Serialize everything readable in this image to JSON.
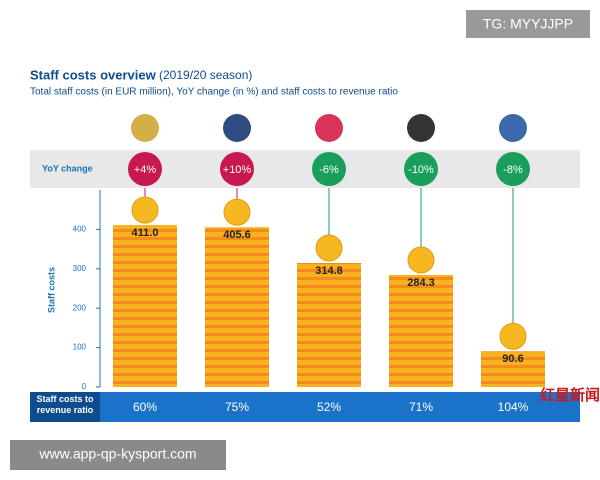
{
  "chart_data": {
    "type": "bar",
    "title": "Staff costs overview",
    "title_note": "(2019/20 season)",
    "subtitle": "Total staff costs (in EUR million), YoY change (in %) and staff costs to revenue ratio",
    "y_label": "Staff costs",
    "categories": [
      null,
      null,
      null,
      null,
      null
    ],
    "values": [
      411.0,
      405.6,
      314.8,
      284.3,
      90.6
    ],
    "value_labels": [
      "411.0",
      "405.6",
      "314.8",
      "284.3",
      "90.6"
    ],
    "color": "#f7b21e",
    "ylim": [
      0,
      500
    ],
    "yticks": [
      0,
      100,
      200,
      300,
      400
    ],
    "yoy": {
      "label": "YoY change",
      "values": [
        4,
        10,
        -6,
        -10,
        -8
      ],
      "value_labels": [
        "+4%",
        "+10%",
        "-6%",
        "-10%",
        "-8%"
      ],
      "colors": [
        "#c8194f",
        "#c8194f",
        "#1a9e5c",
        "#1a9e5c",
        "#1a9e5c"
      ]
    },
    "ratio": {
      "label": "Staff costs to revenue ratio",
      "values": [
        60,
        75,
        52,
        71,
        104
      ],
      "value_labels": [
        "60%",
        "75%",
        "52%",
        "71%",
        "104%"
      ]
    }
  },
  "watermarks": [
    "TG: MYYJJPP",
    "www.app-qp-kysport.com",
    "红星新闻"
  ]
}
